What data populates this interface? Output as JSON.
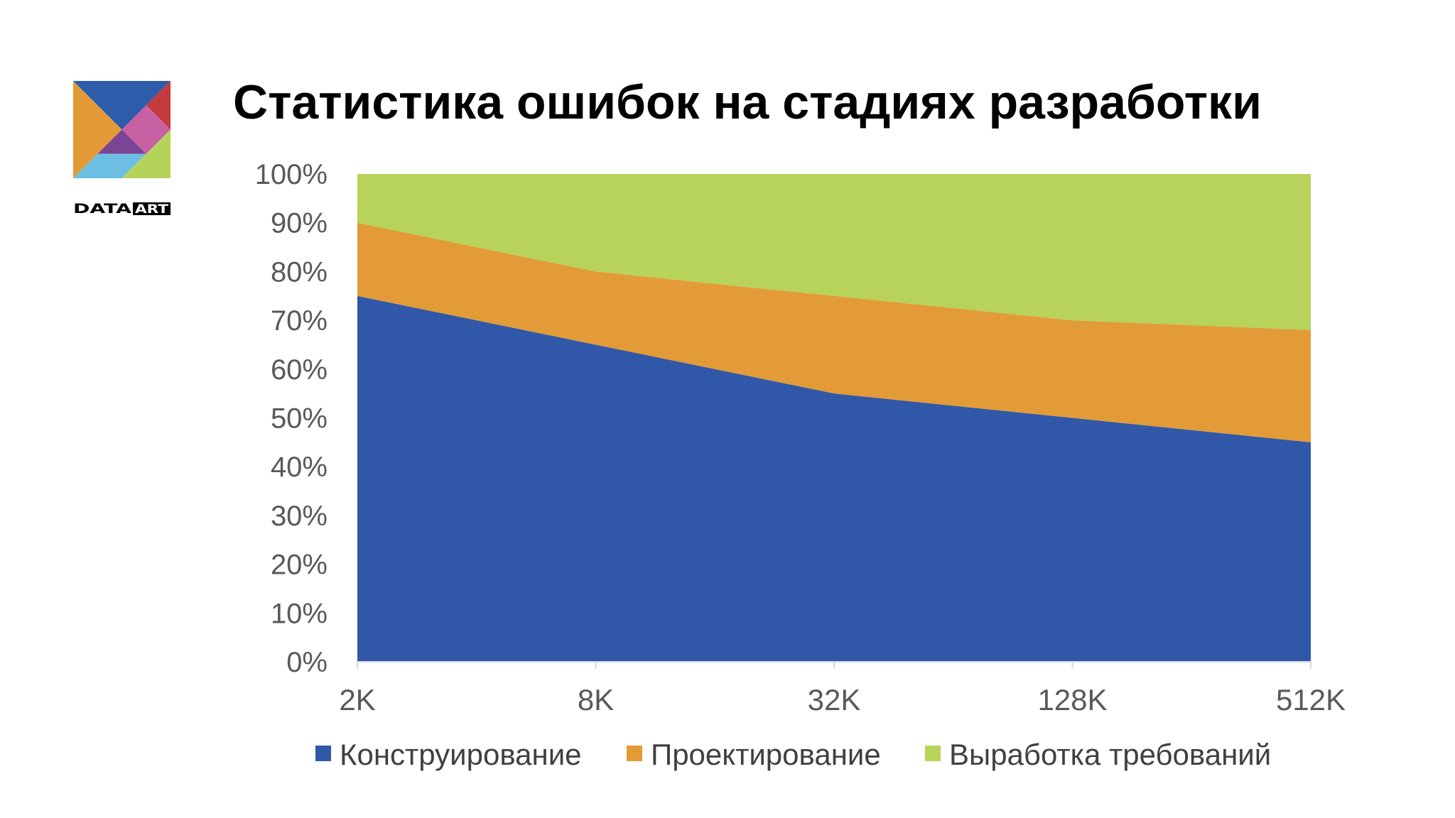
{
  "slide": {
    "title": "Статистика ошибок на стадиях разработки"
  },
  "logo": {
    "brand_text": "DATAART",
    "colors": {
      "blue": "#2c5caa",
      "orange": "#e39a36",
      "red": "#c53a3c",
      "pink": "#c860a4",
      "purple": "#7a4594",
      "light_blue": "#6cbfe2",
      "green": "#b5d35a"
    }
  },
  "chart_data": {
    "type": "area",
    "stacked": "percent",
    "categories": [
      "2K",
      "8K",
      "32K",
      "128K",
      "512K"
    ],
    "series": [
      {
        "name": "Конструирование",
        "color": "#3158a8",
        "values": [
          75,
          65,
          55,
          50,
          45
        ]
      },
      {
        "name": "Проектирование",
        "color": "#e29b37",
        "values": [
          15,
          15,
          20,
          20,
          23
        ]
      },
      {
        "name": "Выработка требований",
        "color": "#b7d35a",
        "values": [
          10,
          20,
          25,
          30,
          32
        ]
      }
    ],
    "y_ticks": [
      "0%",
      "10%",
      "20%",
      "30%",
      "40%",
      "50%",
      "60%",
      "70%",
      "80%",
      "90%",
      "100%"
    ],
    "ylim": [
      0,
      100
    ],
    "grid": false,
    "legend": "bottom"
  }
}
